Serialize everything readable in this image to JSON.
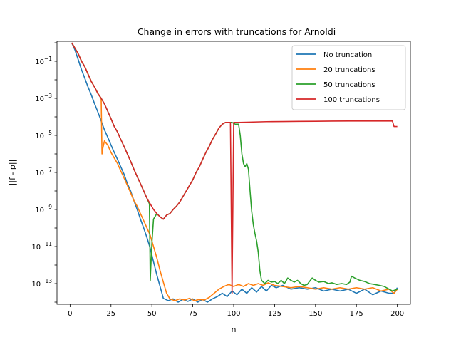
{
  "chart_data": {
    "type": "line",
    "title": "Change in errors with truncations for Arnoldi",
    "xlabel": "n",
    "ylabel": "||f - p||",
    "xlim": [
      -8,
      208
    ],
    "ylim": [
      1e-14,
      1.0
    ],
    "y_scale": "log",
    "x_ticks": [
      0,
      25,
      50,
      75,
      100,
      125,
      150,
      175,
      200
    ],
    "y_ticks": [
      {
        "value": 0.1,
        "base": "10",
        "exp": "−1"
      },
      {
        "value": 0.001,
        "base": "10",
        "exp": "−3"
      },
      {
        "value": 1e-05,
        "base": "10",
        "exp": "−5"
      },
      {
        "value": 1e-07,
        "base": "10",
        "exp": "−7"
      },
      {
        "value": 1e-09,
        "base": "10",
        "exp": "−9"
      },
      {
        "value": 1e-11,
        "base": "10",
        "exp": "−11"
      },
      {
        "value": 1e-13,
        "base": "10",
        "exp": "−13"
      }
    ],
    "legend_position": "top-right",
    "grid": false,
    "series": [
      {
        "name": "No truncation",
        "color": "#1f77b4",
        "points": [
          [
            1,
            1.0
          ],
          [
            3,
            0.4
          ],
          [
            5,
            0.12
          ],
          [
            7,
            0.035
          ],
          [
            9,
            0.012
          ],
          [
            11,
            0.004
          ],
          [
            13,
            0.0015
          ],
          [
            15,
            0.0005
          ],
          [
            17,
            0.00018
          ],
          [
            19,
            6e-05
          ],
          [
            21,
            2e-05
          ],
          [
            23,
            8e-06
          ],
          [
            25,
            3e-06
          ],
          [
            27,
            1.2e-06
          ],
          [
            29,
            5e-07
          ],
          [
            31,
            2e-07
          ],
          [
            33,
            8e-08
          ],
          [
            35,
            2.5e-08
          ],
          [
            37,
            1e-08
          ],
          [
            39,
            3e-09
          ],
          [
            41,
            1e-09
          ],
          [
            43,
            3e-10
          ],
          [
            45,
            1e-10
          ],
          [
            47,
            3e-11
          ],
          [
            49,
            8e-12
          ],
          [
            51,
            1.5e-12
          ],
          [
            53,
            3e-13
          ],
          [
            55,
            7e-14
          ],
          [
            57,
            1.6e-14
          ],
          [
            60,
            1.2e-14
          ],
          [
            63,
            1.5e-14
          ],
          [
            66,
            1e-14
          ],
          [
            69,
            1.4e-14
          ],
          [
            72,
            1.1e-14
          ],
          [
            75,
            1.5e-14
          ],
          [
            78,
            1e-14
          ],
          [
            81,
            1.4e-14
          ],
          [
            84,
            1e-14
          ],
          [
            87,
            1.5e-14
          ],
          [
            90,
            2e-14
          ],
          [
            93,
            3e-14
          ],
          [
            96,
            2e-14
          ],
          [
            99,
            4e-14
          ],
          [
            102,
            2.5e-14
          ],
          [
            105,
            5e-14
          ],
          [
            108,
            3e-14
          ],
          [
            111,
            6e-14
          ],
          [
            114,
            3.5e-14
          ],
          [
            117,
            7e-14
          ],
          [
            120,
            4e-14
          ],
          [
            123,
            8e-14
          ],
          [
            126,
            6e-14
          ],
          [
            130,
            8e-14
          ],
          [
            135,
            5e-14
          ],
          [
            140,
            6e-14
          ],
          [
            145,
            5e-14
          ],
          [
            150,
            6e-14
          ],
          [
            155,
            4e-14
          ],
          [
            160,
            5e-14
          ],
          [
            165,
            4e-14
          ],
          [
            170,
            5e-14
          ],
          [
            175,
            3e-14
          ],
          [
            180,
            5e-14
          ],
          [
            185,
            2.5e-14
          ],
          [
            190,
            4e-14
          ],
          [
            195,
            3e-14
          ],
          [
            198,
            3e-14
          ],
          [
            200,
            6e-14
          ]
        ]
      },
      {
        "name": "20 truncations",
        "color": "#ff7f0e",
        "points": [
          [
            1,
            1.0
          ],
          [
            3,
            0.5
          ],
          [
            5,
            0.25
          ],
          [
            7,
            0.1
          ],
          [
            9,
            0.05
          ],
          [
            11,
            0.02
          ],
          [
            13,
            0.008
          ],
          [
            15,
            0.004
          ],
          [
            17,
            0.0018
          ],
          [
            19,
            0.001
          ],
          [
            19.5,
            1e-06
          ],
          [
            20,
            2e-06
          ],
          [
            21,
            5e-06
          ],
          [
            23,
            3e-06
          ],
          [
            25,
            1.2e-06
          ],
          [
            27,
            6e-07
          ],
          [
            29,
            3e-07
          ],
          [
            31,
            1.2e-07
          ],
          [
            33,
            5e-08
          ],
          [
            35,
            2e-08
          ],
          [
            37,
            8e-09
          ],
          [
            39,
            3e-09
          ],
          [
            41,
            1.5e-09
          ],
          [
            43,
            6e-10
          ],
          [
            45,
            2.5e-10
          ],
          [
            47,
            1e-10
          ],
          [
            49,
            4e-11
          ],
          [
            51,
            1e-11
          ],
          [
            53,
            2.5e-12
          ],
          [
            55,
            5e-13
          ],
          [
            57,
            1.2e-13
          ],
          [
            59,
            3e-14
          ],
          [
            61,
            1.5e-14
          ],
          [
            64,
            1.2e-14
          ],
          [
            67,
            1.5e-14
          ],
          [
            70,
            1.3e-14
          ],
          [
            73,
            1.6e-14
          ],
          [
            76,
            1.2e-14
          ],
          [
            79,
            1.4e-14
          ],
          [
            82,
            1.3e-14
          ],
          [
            85,
            1.8e-14
          ],
          [
            88,
            3e-14
          ],
          [
            91,
            5e-14
          ],
          [
            94,
            7e-14
          ],
          [
            97,
            9e-14
          ],
          [
            100,
            7e-14
          ],
          [
            103,
            9e-14
          ],
          [
            106,
            7e-14
          ],
          [
            109,
            1e-13
          ],
          [
            112,
            8e-14
          ],
          [
            115,
            1e-13
          ],
          [
            118,
            8e-14
          ],
          [
            121,
            1.1e-13
          ],
          [
            125,
            8e-14
          ],
          [
            130,
            7e-14
          ],
          [
            135,
            6e-14
          ],
          [
            140,
            7e-14
          ],
          [
            145,
            6e-14
          ],
          [
            150,
            5e-14
          ],
          [
            155,
            6e-14
          ],
          [
            160,
            5e-14
          ],
          [
            165,
            6e-14
          ],
          [
            170,
            5e-14
          ],
          [
            175,
            6e-14
          ],
          [
            180,
            5e-14
          ],
          [
            185,
            6e-14
          ],
          [
            190,
            4e-14
          ],
          [
            195,
            5e-14
          ],
          [
            198,
            3e-14
          ],
          [
            200,
            5e-14
          ]
        ]
      },
      {
        "name": "50 truncations",
        "color": "#2ca02c",
        "points": [
          [
            1,
            1.0
          ],
          [
            3,
            0.5
          ],
          [
            5,
            0.25
          ],
          [
            7,
            0.1
          ],
          [
            9,
            0.05
          ],
          [
            11,
            0.02
          ],
          [
            13,
            0.008
          ],
          [
            15,
            0.004
          ],
          [
            17,
            0.0018
          ],
          [
            19,
            0.001
          ],
          [
            21,
            0.0005
          ],
          [
            23,
            0.0002
          ],
          [
            25,
            8e-05
          ],
          [
            27,
            3e-05
          ],
          [
            29,
            1.5e-05
          ],
          [
            31,
            6e-06
          ],
          [
            33,
            2.5e-06
          ],
          [
            35,
            1e-06
          ],
          [
            37,
            4e-07
          ],
          [
            39,
            1.5e-07
          ],
          [
            41,
            6e-08
          ],
          [
            43,
            2.5e-08
          ],
          [
            45,
            1e-08
          ],
          [
            47,
            4e-09
          ],
          [
            48.5,
            2e-09
          ],
          [
            49,
            1.5e-13
          ],
          [
            50,
            1.5e-11
          ],
          [
            51,
            3e-10
          ],
          [
            53,
            6e-10
          ],
          [
            55,
            4e-10
          ],
          [
            57,
            3e-10
          ],
          [
            59,
            5e-10
          ],
          [
            61,
            6e-10
          ],
          [
            63,
            1e-09
          ],
          [
            65,
            1.5e-09
          ],
          [
            67,
            2.5e-09
          ],
          [
            69,
            5e-09
          ],
          [
            71,
            1e-08
          ],
          [
            73,
            2e-08
          ],
          [
            75,
            4e-08
          ],
          [
            77,
            1e-07
          ],
          [
            79,
            2e-07
          ],
          [
            81,
            5e-07
          ],
          [
            83,
            1.2e-06
          ],
          [
            85,
            2.5e-06
          ],
          [
            87,
            6e-06
          ],
          [
            89,
            1.2e-05
          ],
          [
            91,
            2.5e-05
          ],
          [
            93,
            4e-05
          ],
          [
            95,
            5e-05
          ],
          [
            97,
            5e-05
          ],
          [
            99,
            5e-05
          ],
          [
            101,
            4e-05
          ],
          [
            103,
            4e-05
          ],
          [
            104,
            1e-05
          ],
          [
            105,
            1e-06
          ],
          [
            106,
            3e-07
          ],
          [
            107,
            2e-07
          ],
          [
            108,
            3e-07
          ],
          [
            109,
            1.5e-07
          ],
          [
            110,
            1e-08
          ],
          [
            111,
            8e-10
          ],
          [
            112,
            1.5e-10
          ],
          [
            113,
            5e-11
          ],
          [
            114,
            2e-11
          ],
          [
            115,
            5e-12
          ],
          [
            116,
            5e-13
          ],
          [
            117,
            1.5e-13
          ],
          [
            119,
            1e-13
          ],
          [
            121,
            1.5e-13
          ],
          [
            123,
            1.2e-13
          ],
          [
            125,
            1.3e-13
          ],
          [
            127,
            1e-13
          ],
          [
            129,
            1.5e-13
          ],
          [
            131,
            1e-13
          ],
          [
            133,
            2e-13
          ],
          [
            135,
            1.5e-13
          ],
          [
            137,
            1.2e-13
          ],
          [
            139,
            1.5e-13
          ],
          [
            141,
            1e-13
          ],
          [
            143,
            8e-14
          ],
          [
            145,
            9e-14
          ],
          [
            146,
            1.2e-13
          ],
          [
            148,
            2e-13
          ],
          [
            150,
            1.5e-13
          ],
          [
            152,
            1.2e-13
          ],
          [
            155,
            1.3e-13
          ],
          [
            158,
            1e-13
          ],
          [
            160,
            1.1e-13
          ],
          [
            163,
            9e-14
          ],
          [
            166,
            1e-13
          ],
          [
            169,
            9e-14
          ],
          [
            171,
            1.2e-13
          ],
          [
            172,
            2.5e-13
          ],
          [
            174,
            2e-13
          ],
          [
            177,
            1.5e-13
          ],
          [
            180,
            1.3e-13
          ],
          [
            183,
            1e-13
          ],
          [
            186,
            9e-14
          ],
          [
            189,
            8e-14
          ],
          [
            192,
            7e-14
          ],
          [
            195,
            5e-14
          ],
          [
            197,
            4e-14
          ],
          [
            200,
            5e-14
          ]
        ]
      },
      {
        "name": "100 truncations",
        "color": "#d62728",
        "points": [
          [
            1,
            1.0
          ],
          [
            3,
            0.5
          ],
          [
            5,
            0.25
          ],
          [
            7,
            0.1
          ],
          [
            9,
            0.05
          ],
          [
            11,
            0.02
          ],
          [
            13,
            0.008
          ],
          [
            15,
            0.004
          ],
          [
            17,
            0.0018
          ],
          [
            19,
            0.001
          ],
          [
            21,
            0.0005
          ],
          [
            23,
            0.0002
          ],
          [
            25,
            8e-05
          ],
          [
            27,
            3e-05
          ],
          [
            29,
            1.5e-05
          ],
          [
            31,
            6e-06
          ],
          [
            33,
            2.5e-06
          ],
          [
            35,
            1e-06
          ],
          [
            37,
            4e-07
          ],
          [
            39,
            1.5e-07
          ],
          [
            41,
            6e-08
          ],
          [
            43,
            2.5e-08
          ],
          [
            45,
            1e-08
          ],
          [
            47,
            4e-09
          ],
          [
            49,
            2e-09
          ],
          [
            51,
            1e-09
          ],
          [
            53,
            6e-10
          ],
          [
            55,
            4e-10
          ],
          [
            57,
            3e-10
          ],
          [
            59,
            5e-10
          ],
          [
            61,
            6e-10
          ],
          [
            63,
            1e-09
          ],
          [
            65,
            1.5e-09
          ],
          [
            67,
            2.5e-09
          ],
          [
            69,
            5e-09
          ],
          [
            71,
            1e-08
          ],
          [
            73,
            2e-08
          ],
          [
            75,
            4e-08
          ],
          [
            77,
            1e-07
          ],
          [
            79,
            2e-07
          ],
          [
            81,
            5e-07
          ],
          [
            83,
            1.2e-06
          ],
          [
            85,
            2.5e-06
          ],
          [
            87,
            6e-06
          ],
          [
            89,
            1.2e-05
          ],
          [
            91,
            2.5e-05
          ],
          [
            93,
            4e-05
          ],
          [
            95,
            5e-05
          ],
          [
            97,
            5e-05
          ],
          [
            98,
            5e-05
          ],
          [
            99,
            3e-14
          ],
          [
            100,
            5e-05
          ],
          [
            103,
            5e-05
          ],
          [
            110,
            5.2e-05
          ],
          [
            120,
            5.5e-05
          ],
          [
            130,
            5.6e-05
          ],
          [
            140,
            5.7e-05
          ],
          [
            150,
            5.8e-05
          ],
          [
            160,
            5.9e-05
          ],
          [
            170,
            6e-05
          ],
          [
            180,
            6e-05
          ],
          [
            190,
            6e-05
          ],
          [
            197,
            6e-05
          ],
          [
            198,
            3e-05
          ],
          [
            200,
            3e-05
          ]
        ]
      }
    ]
  }
}
